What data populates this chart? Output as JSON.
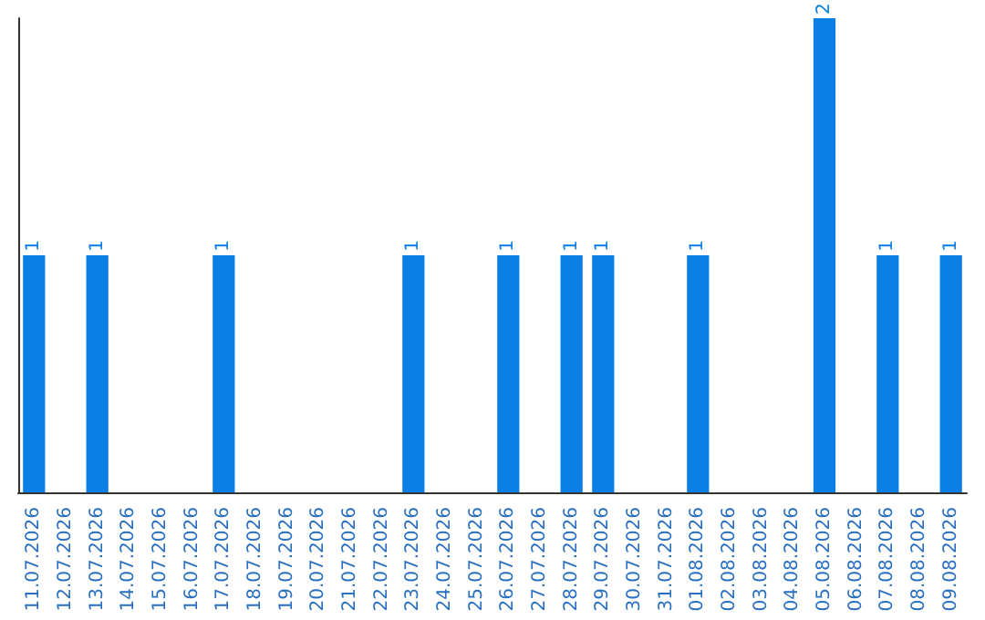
{
  "chart_data": {
    "type": "bar",
    "categories": [
      "11.07.2026",
      "12.07.2026",
      "13.07.2026",
      "14.07.2026",
      "15.07.2026",
      "16.07.2026",
      "17.07.2026",
      "18.07.2026",
      "19.07.2026",
      "20.07.2026",
      "21.07.2026",
      "22.07.2026",
      "23.07.2026",
      "24.07.2026",
      "25.07.2026",
      "26.07.2026",
      "27.07.2026",
      "28.07.2026",
      "29.07.2026",
      "30.07.2026",
      "31.07.2026",
      "01.08.2026",
      "02.08.2026",
      "03.08.2026",
      "04.08.2026",
      "05.08.2026",
      "06.08.2026",
      "07.08.2026",
      "08.08.2026",
      "09.08.2026"
    ],
    "values": [
      1,
      0,
      1,
      0,
      0,
      0,
      1,
      0,
      0,
      0,
      0,
      0,
      1,
      0,
      0,
      1,
      0,
      1,
      1,
      0,
      0,
      1,
      0,
      0,
      0,
      2,
      0,
      1,
      0,
      1
    ],
    "value_labels": [
      "1",
      null,
      "1",
      null,
      null,
      null,
      "1",
      null,
      null,
      null,
      null,
      null,
      "1",
      null,
      null,
      "1",
      null,
      "1",
      "1",
      null,
      null,
      "1",
      null,
      null,
      null,
      "2",
      null,
      "1",
      null,
      "1"
    ],
    "color": "#0a7fe6",
    "grid": false,
    "tick_labels": "x"
  }
}
